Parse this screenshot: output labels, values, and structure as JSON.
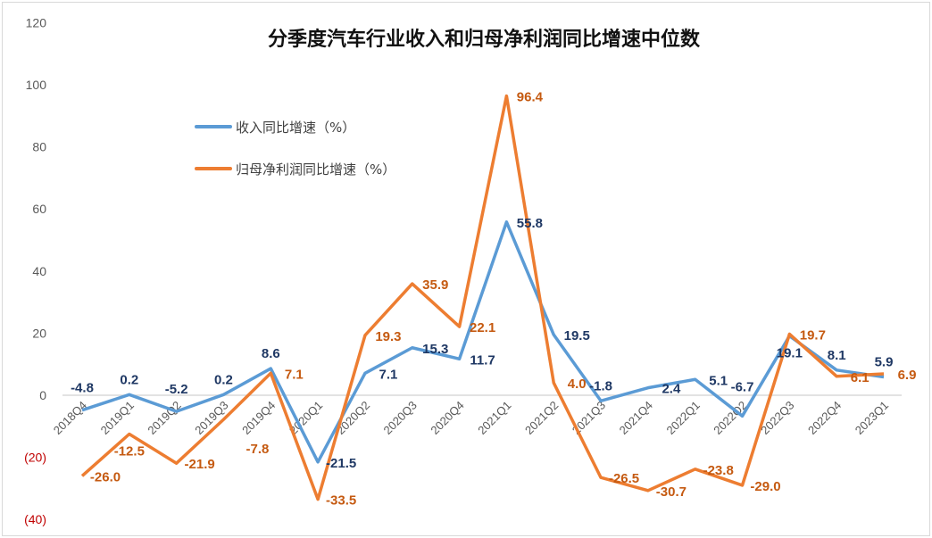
{
  "chart_data": {
    "type": "line",
    "title": "分季度汽车行业收入和归母净利润同比增速中位数",
    "xlabel": "",
    "ylabel": "",
    "categories": [
      "2018Q4",
      "2019Q1",
      "2019Q2",
      "2019Q3",
      "2019Q4",
      "2020Q1",
      "2020Q2",
      "2020Q3",
      "2020Q4",
      "2021Q1",
      "2021Q2",
      "2021Q3",
      "2021Q4",
      "2022Q1",
      "2022Q2",
      "2022Q3",
      "2022Q4",
      "2023Q1"
    ],
    "ylim": [
      -40,
      120
    ],
    "yticks": [
      120,
      100,
      80,
      60,
      40,
      20,
      0,
      -20,
      -40
    ],
    "ytick_labels": [
      "120",
      "100",
      "80",
      "60",
      "40",
      "20",
      "0",
      "(20)",
      "(40)"
    ],
    "grid": "zero line only",
    "legend_position": "upper-left",
    "series": [
      {
        "name": "收入同比增速（%）",
        "color": "#5b9bd5",
        "label_color": "#1f3864",
        "values": [
          -4.8,
          0.2,
          -5.2,
          0.2,
          8.6,
          -21.5,
          7.1,
          15.3,
          11.7,
          55.8,
          19.5,
          -1.8,
          2.4,
          5.1,
          -6.7,
          19.1,
          8.1,
          5.9
        ]
      },
      {
        "name": "归母净利润同比增速（%）",
        "color": "#ed7d31",
        "label_color": "#c55a11",
        "values": [
          -26.0,
          -12.5,
          -21.9,
          -7.8,
          7.1,
          -33.5,
          19.3,
          35.9,
          22.1,
          96.4,
          4.0,
          -26.5,
          -30.7,
          -23.8,
          -29.0,
          19.7,
          6.1,
          6.9
        ]
      }
    ]
  }
}
